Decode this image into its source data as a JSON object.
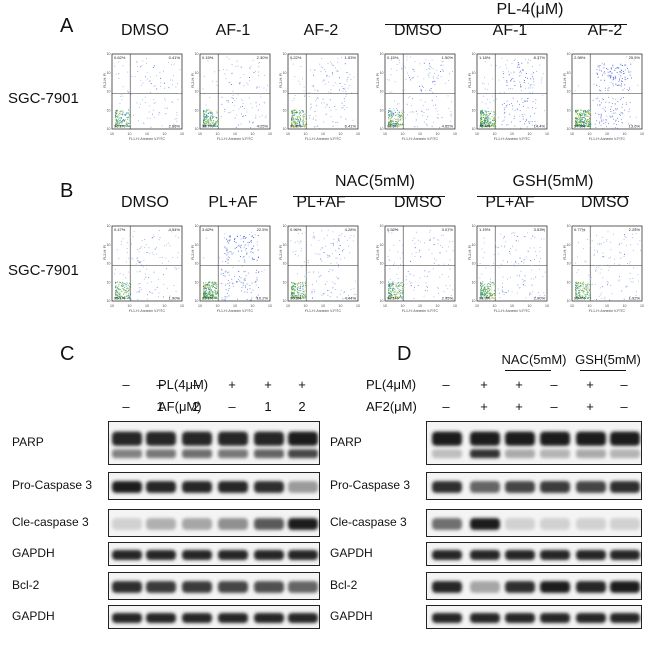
{
  "panel_a": {
    "letter": "A",
    "row_label": "SGC-7901",
    "group_label": "PL-4(μM)",
    "plots": [
      {
        "label": "DMSO",
        "q_ul": "0.62%",
        "q_ur": "0.41%",
        "q_ll": "96.1%",
        "q_lr": "2.86%",
        "spread": 0.15
      },
      {
        "label": "AF-1",
        "q_ul": "0.15%",
        "q_ur": "2.30%",
        "q_ll": "92.7%",
        "q_lr": "4.25%",
        "spread": 0.3
      },
      {
        "label": "AF-2",
        "q_ul": "0.22%",
        "q_ur": "1.53%",
        "q_ll": "91.8%",
        "q_lr": "6.41%",
        "spread": 0.35
      },
      {
        "label": "DMSO",
        "q_ul": "0.15%",
        "q_ur": "1.50%",
        "q_ll": "93.6%",
        "q_lr": "4.62%",
        "spread": 0.35
      },
      {
        "label": "AF-1",
        "q_ul": "1.18%",
        "q_ur": "8.37%",
        "q_ll": "75.4%",
        "q_lr": "14.4%",
        "spread": 0.75
      },
      {
        "label": "AF-2",
        "q_ul": "2.98%",
        "q_ur": "25.5%",
        "q_ll": "57.6%",
        "q_lr": "13.6%",
        "spread": 1.0
      }
    ]
  },
  "panel_b": {
    "letter": "B",
    "row_label": "SGC-7901",
    "group_labels": [
      "NAC(5mM)",
      "GSH(5mM)"
    ],
    "plots": [
      {
        "label": "DMSO",
        "q_ul": "0.47%",
        "q_ur": "4.54%",
        "q_ll": "95.1%",
        "q_lr": "1.90%",
        "spread": 0.2
      },
      {
        "label": "PL+AF",
        "q_ul": "3.82%",
        "q_ur": "22.5%",
        "q_ll": "63.1%",
        "q_lr": "10.2%",
        "spread": 1.0
      },
      {
        "label": "PL+AF",
        "q_ul": "0.96%",
        "q_ur": "4.28%",
        "q_ll": "90.8%",
        "q_lr": "4.44%",
        "spread": 0.35
      },
      {
        "label": "DMSO",
        "q_ul": "0.52%",
        "q_ur": "3.07%",
        "q_ll": "93.1%",
        "q_lr": "2.95%",
        "spread": 0.25
      },
      {
        "label": "PL+AF",
        "q_ul": "1.19%",
        "q_ur": "3.53%",
        "q_ll": "91.3%",
        "q_lr": "2.90%",
        "spread": 0.3
      },
      {
        "label": "DMSO",
        "q_ul": "0.77%",
        "q_ur": "2.25%",
        "q_ll": "95.4%",
        "q_lr": "1.92%",
        "spread": 0.2
      }
    ],
    "axis_y": "FL2-H: PI",
    "axis_x": "FL1-H: Annexin V-FITC"
  },
  "panel_c": {
    "letter": "C",
    "treat_rows": [
      {
        "label": "PL(4μM)",
        "values": [
          "–",
          "–",
          "–",
          "+",
          "+",
          "+"
        ]
      },
      {
        "label": "AF(μM)",
        "values": [
          "–",
          "1",
          "2",
          "–",
          "1",
          "2"
        ]
      }
    ],
    "bands": [
      {
        "label": "PARP",
        "intensity": [
          0.9,
          0.9,
          0.9,
          0.9,
          0.9,
          0.95
        ],
        "lower": [
          0.5,
          0.55,
          0.6,
          0.55,
          0.65,
          0.8
        ]
      },
      {
        "label": "Pro-Caspase 3",
        "intensity": [
          0.95,
          0.9,
          0.9,
          0.9,
          0.85,
          0.35
        ]
      },
      {
        "label": "Cle-caspase 3",
        "intensity": [
          0.1,
          0.25,
          0.3,
          0.4,
          0.65,
          0.95
        ]
      },
      {
        "label": "GAPDH",
        "intensity": [
          0.9,
          0.9,
          0.9,
          0.9,
          0.9,
          0.9
        ]
      },
      {
        "label": "Bcl-2",
        "intensity": [
          0.85,
          0.8,
          0.8,
          0.75,
          0.7,
          0.6
        ]
      },
      {
        "label": "GAPDH",
        "intensity": [
          0.9,
          0.9,
          0.9,
          0.9,
          0.9,
          0.9
        ]
      }
    ]
  },
  "panel_d": {
    "letter": "D",
    "group_labels": [
      "NAC(5mM)",
      "GSH(5mM)"
    ],
    "treat_rows": [
      {
        "label": "PL(4μM)",
        "values": [
          "–",
          "+",
          "+",
          "–",
          "+",
          "–"
        ]
      },
      {
        "label": "AF2(μM)",
        "values": [
          "–",
          "+",
          "+",
          "–",
          "+",
          "–"
        ]
      }
    ],
    "bands": [
      {
        "label": "PARP",
        "intensity": [
          0.95,
          0.95,
          0.95,
          0.95,
          0.95,
          0.95
        ],
        "lower": [
          0.2,
          0.9,
          0.3,
          0.25,
          0.3,
          0.25
        ]
      },
      {
        "label": "Pro-Caspase 3",
        "intensity": [
          0.85,
          0.6,
          0.75,
          0.8,
          0.75,
          0.85
        ]
      },
      {
        "label": "Cle-caspase 3",
        "intensity": [
          0.55,
          0.95,
          0.1,
          0.1,
          0.1,
          0.1
        ]
      },
      {
        "label": "GAPDH",
        "intensity": [
          0.9,
          0.9,
          0.9,
          0.9,
          0.9,
          0.9
        ]
      },
      {
        "label": "Bcl-2",
        "intensity": [
          0.9,
          0.3,
          0.85,
          0.95,
          0.9,
          0.95
        ]
      },
      {
        "label": "GAPDH",
        "intensity": [
          0.9,
          0.9,
          0.9,
          0.9,
          0.9,
          0.9
        ]
      }
    ]
  }
}
